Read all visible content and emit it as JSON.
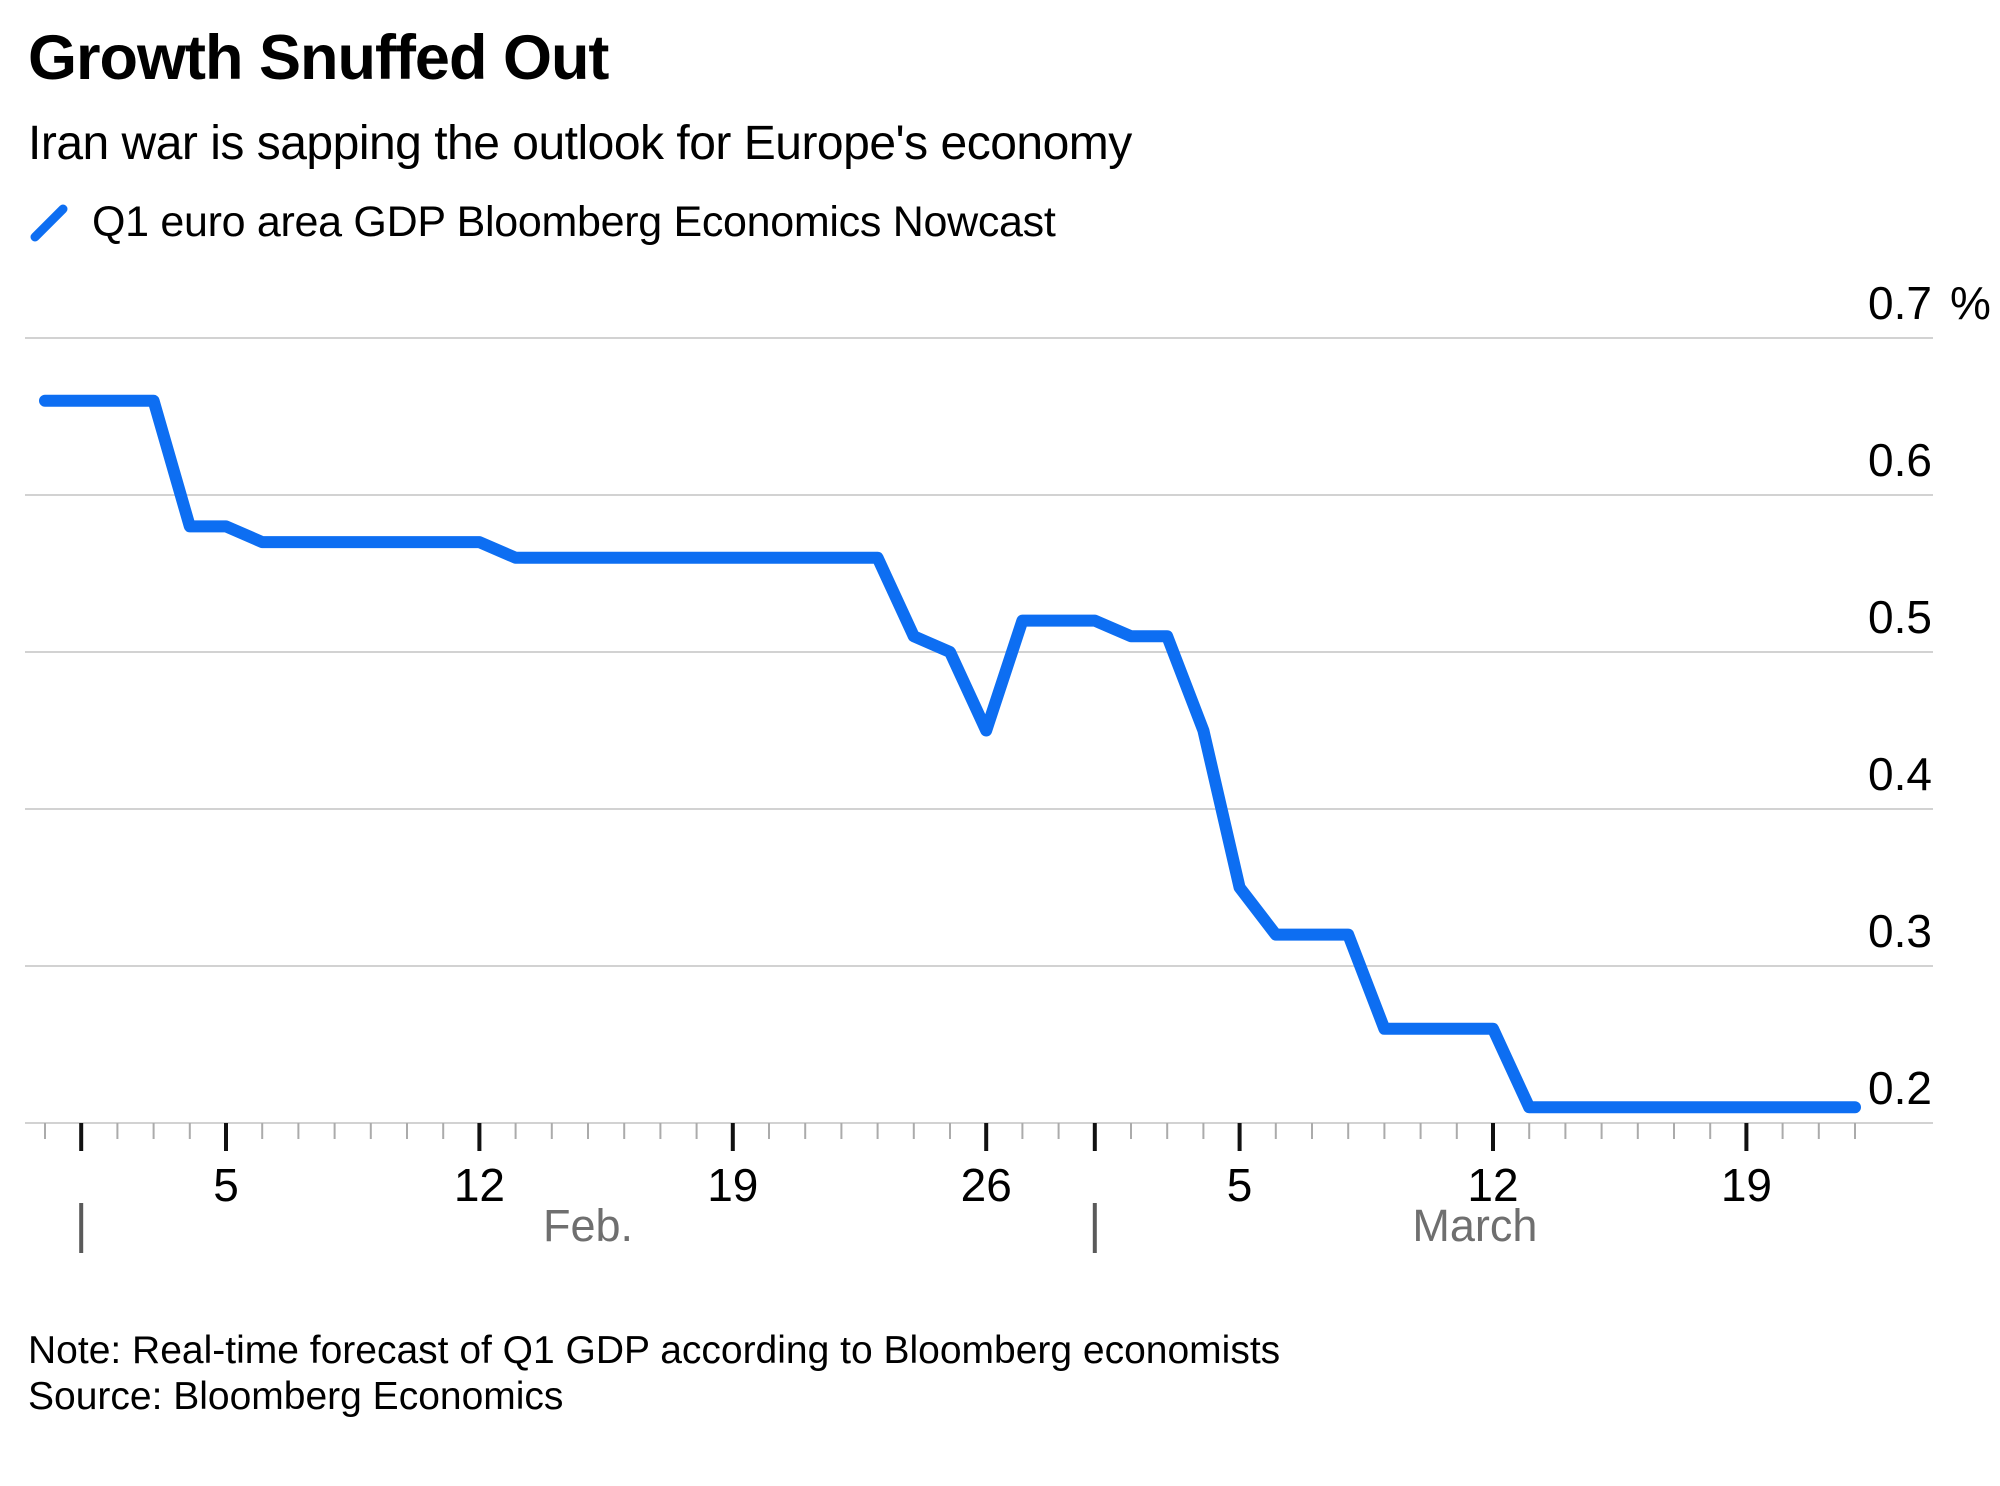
{
  "header": {
    "title": "Growth Snuffed Out",
    "subtitle": "Iran war is sapping the outlook for Europe's economy"
  },
  "legend": {
    "label": "Q1 euro area GDP Bloomberg Economics Nowcast"
  },
  "footer": {
    "note": "Note: Real-time forecast of Q1 GDP according to Bloomberg economists",
    "source": "Source: Bloomberg Economics"
  },
  "colors": {
    "line": "#0D6EF2",
    "grid": "#D2D2D2",
    "tick_minor": "#ABABAB",
    "tick_major": "#111111",
    "axis_label": "#000000",
    "month_label": "#6F6F6F",
    "month_separator": "#5A5A5A"
  },
  "chart_data": {
    "type": "line",
    "title": "Growth Snuffed Out",
    "series_name": "Q1 euro area GDP Bloomberg Economics Nowcast",
    "unit": "%",
    "grid": true,
    "legend_position": "top-left",
    "ylim": [
      0.2,
      0.7
    ],
    "yticks": [
      {
        "value": 0.2,
        "label": "0.2",
        "suffix": ""
      },
      {
        "value": 0.3,
        "label": "0.3",
        "suffix": ""
      },
      {
        "value": 0.4,
        "label": "0.4",
        "suffix": ""
      },
      {
        "value": 0.5,
        "label": "0.5",
        "suffix": ""
      },
      {
        "value": 0.6,
        "label": "0.6",
        "suffix": ""
      },
      {
        "value": 0.7,
        "label": "0.7",
        "suffix": "%"
      }
    ],
    "x_major_ticks": [
      {
        "index": 1,
        "label": ""
      },
      {
        "index": 5,
        "label": "5"
      },
      {
        "index": 12,
        "label": "12"
      },
      {
        "index": 19,
        "label": "19"
      },
      {
        "index": 26,
        "label": "26"
      },
      {
        "index": 29,
        "label": ""
      },
      {
        "index": 33,
        "label": "5"
      },
      {
        "index": 40,
        "label": "12"
      },
      {
        "index": 47,
        "label": "19"
      }
    ],
    "months": [
      {
        "label": "Feb.",
        "start_index": 1,
        "end_index": 29
      },
      {
        "label": "March",
        "start_index": 29,
        "end_index": 50
      }
    ],
    "dates": [
      "Jan. 31",
      "Feb. 1",
      "Feb. 2",
      "Feb. 3",
      "Feb. 4",
      "Feb. 5",
      "Feb. 6",
      "Feb. 7",
      "Feb. 8",
      "Feb. 9",
      "Feb. 10",
      "Feb. 11",
      "Feb. 12",
      "Feb. 13",
      "Feb. 14",
      "Feb. 15",
      "Feb. 16",
      "Feb. 17",
      "Feb. 18",
      "Feb. 19",
      "Feb. 20",
      "Feb. 21",
      "Feb. 22",
      "Feb. 23",
      "Feb. 24",
      "Feb. 25",
      "Feb. 26",
      "Feb. 27",
      "Feb. 28",
      "March 1",
      "March 2",
      "March 3",
      "March 4",
      "March 5",
      "March 6",
      "March 7",
      "March 8",
      "March 9",
      "March 10",
      "March 11",
      "March 12",
      "March 13",
      "March 14",
      "March 15",
      "March 16",
      "March 17",
      "March 18",
      "March 19",
      "March 20",
      "March 21",
      "March 22"
    ],
    "values": [
      0.66,
      0.66,
      0.66,
      0.66,
      0.58,
      0.58,
      0.57,
      0.57,
      0.57,
      0.57,
      0.57,
      0.57,
      0.57,
      0.56,
      0.56,
      0.56,
      0.56,
      0.56,
      0.56,
      0.56,
      0.56,
      0.56,
      0.56,
      0.56,
      0.51,
      0.5,
      0.45,
      0.52,
      0.52,
      0.52,
      0.51,
      0.51,
      0.45,
      0.35,
      0.32,
      0.32,
      0.32,
      0.26,
      0.26,
      0.26,
      0.26,
      0.21,
      0.21,
      0.21,
      0.21,
      0.21,
      0.21,
      0.21,
      0.21,
      0.21,
      0.21
    ]
  }
}
